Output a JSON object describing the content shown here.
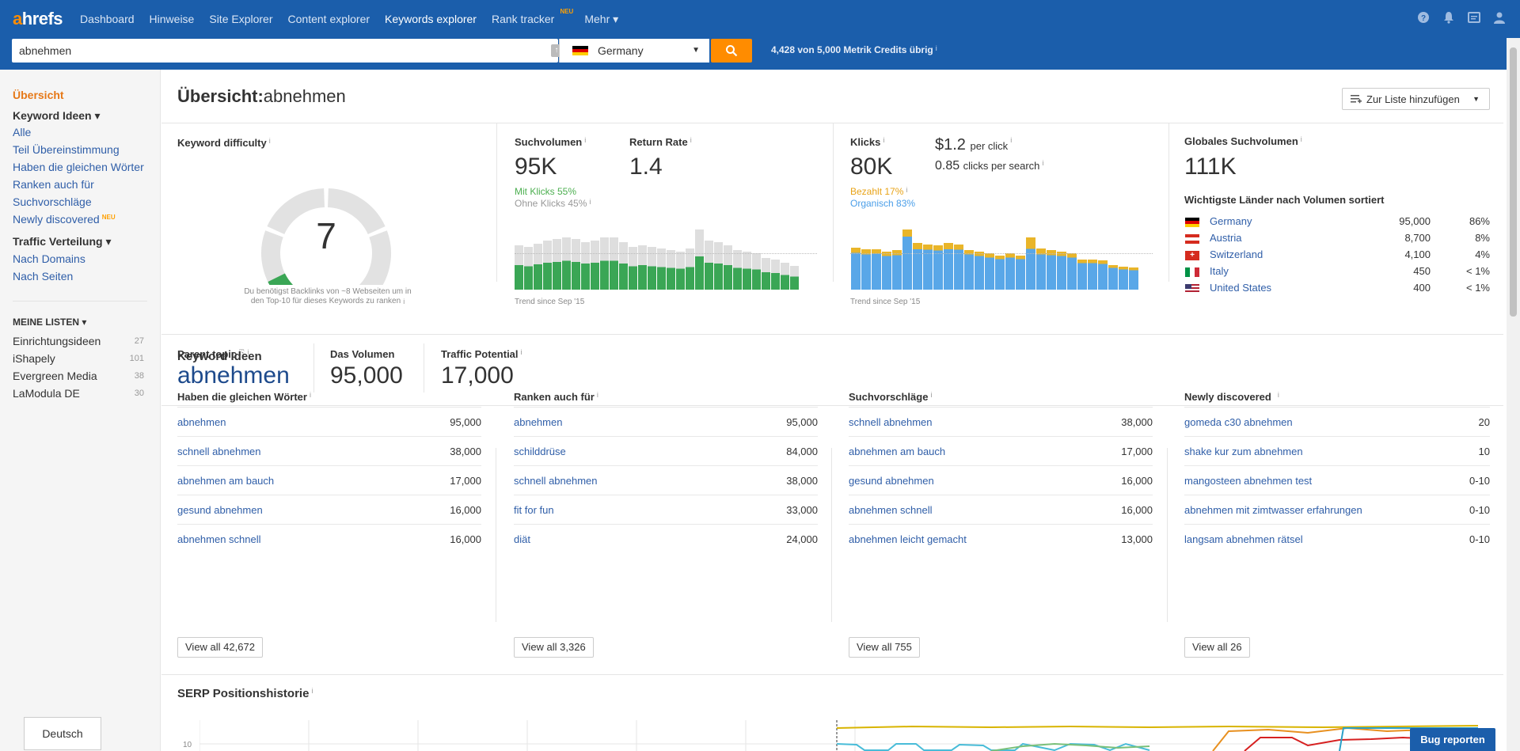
{
  "nav": {
    "logo_a": "a",
    "logo_rest": "hrefs",
    "items": [
      {
        "label": "Dashboard"
      },
      {
        "label": "Hinweise"
      },
      {
        "label": "Site Explorer"
      },
      {
        "label": "Content explorer"
      },
      {
        "label": "Keywords explorer"
      },
      {
        "label": "Rank tracker",
        "badge": "NEU"
      },
      {
        "label": "Mehr ▾"
      }
    ]
  },
  "search": {
    "value": "abnehmen",
    "country": "Germany",
    "credits": "4,428 von 5,000 Metrik Credits übrig"
  },
  "sidebar": {
    "overview": "Übersicht",
    "keyword_ideas_head": "Keyword Ideen ▾",
    "keyword_ideas": [
      "Alle",
      "Teil Übereinstimmung",
      "Haben die gleichen Wörter",
      "Ranken auch für",
      "Suchvorschläge",
      "Newly discovered"
    ],
    "newly_badge": "NEU",
    "traffic_head": "Traffic Verteilung ▾",
    "traffic_items": [
      "Nach Domains",
      "Nach Seiten"
    ],
    "lists_head": "MEINE LISTEN ▾",
    "lists": [
      {
        "name": "Einrichtungsideen",
        "count": "27"
      },
      {
        "name": "iShapely",
        "count": "101"
      },
      {
        "name": "Evergreen Media",
        "count": "38"
      },
      {
        "name": "LaModula DE",
        "count": "30"
      }
    ],
    "language": "Deutsch"
  },
  "header": {
    "title_bold": "Übersicht:",
    "title_keyword": "abnehmen",
    "add_list": "Zur Liste hinzufügen"
  },
  "kd": {
    "label": "Keyword difficulty",
    "value": "7",
    "fill_fraction": 0.07,
    "caption": "Du benötigst Backlinks von ~8 Webseiten um in den Top-10 für dieses Keywords zu ranken"
  },
  "volume": {
    "label": "Suchvolumen",
    "value": "95K",
    "with_clicks": "Mit Klicks 55%",
    "without_clicks": "Ohne Klicks 45%",
    "return_label": "Return Rate",
    "return_value": "1.4",
    "trend": "Trend since Sep '15",
    "bars_total": [
      28,
      27,
      29,
      31,
      32,
      33,
      32,
      30,
      31,
      33,
      33,
      30,
      27,
      28,
      27,
      26,
      25,
      24,
      26,
      38,
      31,
      30,
      28,
      25,
      24,
      23,
      20,
      19,
      17,
      15
    ],
    "bars_green_fraction": 0.55
  },
  "clicks": {
    "label": "Klicks",
    "value": "80K",
    "per_click_value": "$1.2",
    "per_click_label": "per click",
    "per_search_value": "0.85",
    "per_search_label": "clicks per search",
    "paid": "Bezahlt 17%",
    "organic": "Organisch 83%",
    "trend": "Trend since Sep '15",
    "bars_blue": [
      42,
      40,
      41,
      38,
      39,
      60,
      46,
      45,
      44,
      46,
      45,
      40,
      38,
      36,
      35,
      36,
      35,
      46,
      40,
      39,
      38,
      36,
      30,
      30,
      29,
      25,
      23,
      22
    ],
    "bars_yellow": [
      6,
      6,
      5,
      5,
      6,
      8,
      7,
      6,
      6,
      7,
      6,
      5,
      5,
      5,
      4,
      5,
      4,
      13,
      7,
      6,
      5,
      5,
      4,
      4,
      4,
      3,
      3,
      3
    ]
  },
  "global": {
    "label": "Globales Suchvolumen",
    "value": "111K",
    "top_label": "Wichtigste Länder nach Volumen sortiert",
    "countries": [
      {
        "name": "Germany",
        "volume": "95,000",
        "pct": "86%"
      },
      {
        "name": "Austria",
        "volume": "8,700",
        "pct": "8%"
      },
      {
        "name": "Switzerland",
        "volume": "4,100",
        "pct": "4%"
      },
      {
        "name": "Italy",
        "volume": "450",
        "pct": "< 1%"
      },
      {
        "name": "United States",
        "volume": "400",
        "pct": "< 1%"
      }
    ]
  },
  "parent": {
    "label": "Parent topic",
    "value": "abnehmen",
    "volume_label": "Das Volumen",
    "volume_value": "95,000",
    "traffic_label": "Traffic Potential",
    "traffic_value": "17,000"
  },
  "ideas": {
    "title": "Keyword Ideen",
    "columns": [
      {
        "title": "Haben die gleichen Wörter",
        "view_all": "View all 42,672",
        "rows": [
          {
            "kw": "abnehmen",
            "vol": "95,000"
          },
          {
            "kw": "schnell abnehmen",
            "vol": "38,000"
          },
          {
            "kw": "abnehmen am bauch",
            "vol": "17,000"
          },
          {
            "kw": "gesund abnehmen",
            "vol": "16,000"
          },
          {
            "kw": "abnehmen schnell",
            "vol": "16,000"
          }
        ]
      },
      {
        "title": "Ranken auch für",
        "view_all": "View all 3,326",
        "rows": [
          {
            "kw": "abnehmen",
            "vol": "95,000"
          },
          {
            "kw": "schilddrüse",
            "vol": "84,000"
          },
          {
            "kw": "schnell abnehmen",
            "vol": "38,000"
          },
          {
            "kw": "fit for fun",
            "vol": "33,000"
          },
          {
            "kw": "diät",
            "vol": "24,000"
          }
        ]
      },
      {
        "title": "Suchvorschläge",
        "view_all": "View all 755",
        "rows": [
          {
            "kw": "schnell abnehmen",
            "vol": "38,000"
          },
          {
            "kw": "abnehmen am bauch",
            "vol": "17,000"
          },
          {
            "kw": "gesund abnehmen",
            "vol": "16,000"
          },
          {
            "kw": "abnehmen schnell",
            "vol": "16,000"
          },
          {
            "kw": "abnehmen leicht gemacht",
            "vol": "13,000"
          }
        ]
      },
      {
        "title": "Newly discovered",
        "view_all": "View all 26",
        "rows": [
          {
            "kw": "gomeda c30 abnehmen",
            "vol": "20"
          },
          {
            "kw": "shake kur zum abnehmen",
            "vol": "10"
          },
          {
            "kw": "mangosteen abnehmen test",
            "vol": "0-10"
          },
          {
            "kw": "abnehmen mit zimtwasser erfahrungen",
            "vol": "0-10"
          },
          {
            "kw": "langsam abnehmen rätsel",
            "vol": "0-10"
          }
        ]
      }
    ]
  },
  "serp": {
    "title": "SERP Positionshistorie",
    "y_tick": "10"
  },
  "bug_button": "Bug reporten",
  "colors": {
    "nav_bg": "#1b5eab",
    "accent_orange": "#ff8c00",
    "kd_green": "#3aa655",
    "gauge_gray": "#e2e2e2",
    "bar_gray": "#dedede",
    "bar_green": "#3aa655",
    "bar_blue": "#59a7e8",
    "bar_yellow": "#e9b529"
  }
}
